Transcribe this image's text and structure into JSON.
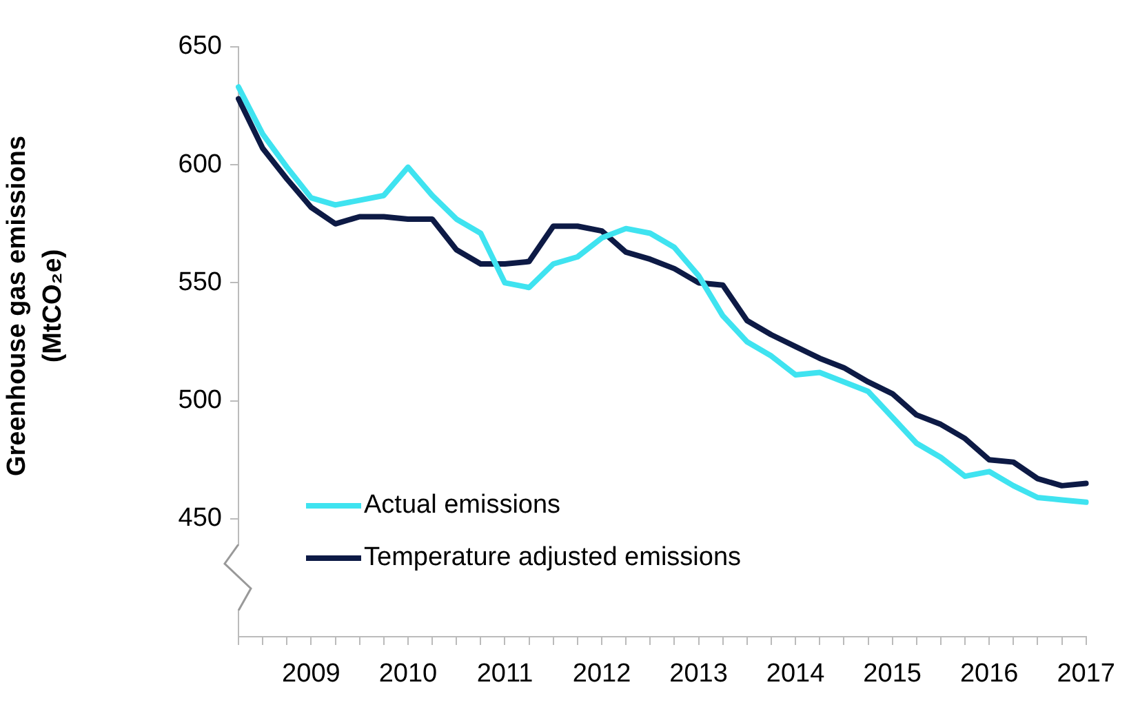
{
  "chart_data": {
    "type": "line",
    "ylabel": "Greenhouse gas emissions (MtCO₂e)",
    "categories": [
      null,
      null,
      null,
      "2009",
      null,
      null,
      null,
      "2010",
      null,
      null,
      null,
      "2011",
      null,
      null,
      null,
      "2012",
      null,
      null,
      null,
      "2013",
      null,
      null,
      null,
      "2014",
      null,
      null,
      null,
      "2015",
      null,
      null,
      null,
      "2016",
      null,
      null,
      null,
      "2017"
    ],
    "series": [
      {
        "name": "Actual emissions",
        "color": "#3fe3f0",
        "values": [
          633,
          613,
          599,
          586,
          583,
          585,
          587,
          599,
          587,
          577,
          571,
          550,
          548,
          558,
          561,
          569,
          573,
          571,
          565,
          553,
          536,
          525,
          519,
          511,
          512,
          508,
          504,
          493,
          482,
          476,
          468,
          470,
          464,
          459,
          458,
          457
        ]
      },
      {
        "name": "Temperature adjusted emissions",
        "color": "#0d1a45",
        "values": [
          628,
          607,
          594,
          582,
          575,
          578,
          578,
          577,
          577,
          564,
          558,
          558,
          559,
          574,
          574,
          572,
          563,
          560,
          556,
          550,
          549,
          534,
          528,
          523,
          518,
          514,
          508,
          503,
          494,
          490,
          484,
          475,
          474,
          467,
          464,
          465
        ]
      }
    ],
    "ylim": [
      400,
      650
    ],
    "yticks": [
      450,
      500,
      550,
      600,
      650
    ],
    "grid": false,
    "legend": "bottom left",
    "marker": "none",
    "line_style": "solid"
  }
}
